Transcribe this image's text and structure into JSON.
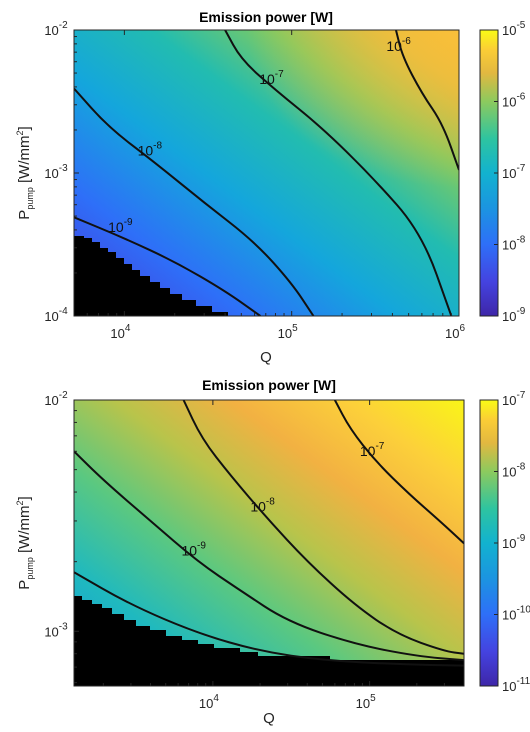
{
  "chart_data": [
    {
      "type": "heatmap",
      "title": "Emission power [W]",
      "xlabel": "Q",
      "ylabel_main": "P",
      "ylabel_sub": "pump",
      "ylabel_unit_pre": " [W/mm",
      "ylabel_unit_sup": "2",
      "ylabel_unit_post": "]",
      "xscale": "log",
      "yscale": "log",
      "xlim": [
        5000,
        1000000
      ],
      "ylim": [
        0.0001,
        0.01
      ],
      "colorbar": {
        "scale": "log",
        "range": [
          1e-09,
          1e-05
        ],
        "ticks": [
          {
            "base": "10",
            "exp": "-5"
          },
          {
            "base": "10",
            "exp": "-6"
          },
          {
            "base": "10",
            "exp": "-7"
          },
          {
            "base": "10",
            "exp": "-8"
          },
          {
            "base": "10",
            "exp": "-9"
          }
        ]
      },
      "xticks": [
        {
          "base": "10",
          "exp": "4"
        },
        {
          "base": "10",
          "exp": "5"
        },
        {
          "base": "10",
          "exp": "6"
        }
      ],
      "yticks": [
        {
          "base": "10",
          "exp": "-2"
        },
        {
          "base": "10",
          "exp": "-3"
        },
        {
          "base": "10",
          "exp": "-4"
        }
      ],
      "contours": [
        {
          "level": 1e-09,
          "label_base": "10",
          "label_exp": "-9",
          "points": [
            [
              5000,
              0.00049
            ],
            [
              10000,
              0.00035
            ],
            [
              20000,
              0.00024
            ],
            [
              40000,
              0.00015
            ],
            [
              65000,
              0.0001
            ]
          ]
        },
        {
          "level": 1e-08,
          "label_base": "10",
          "label_exp": "-8",
          "points": [
            [
              5000,
              0.0039
            ],
            [
              8000,
              0.0021
            ],
            [
              15000,
              0.0012
            ],
            [
              30000,
              0.00062
            ],
            [
              60000,
              0.00033
            ],
            [
              100000,
              0.00017
            ],
            [
              135000,
              0.0001
            ]
          ]
        },
        {
          "level": 1e-07,
          "label_base": "10",
          "label_exp": "-7",
          "points": [
            [
              40000,
              0.01
            ],
            [
              50000,
              0.0062
            ],
            [
              80000,
              0.0038
            ],
            [
              150000,
              0.0021
            ],
            [
              300000,
              0.00095
            ],
            [
              600000,
              0.00038
            ],
            [
              900000,
              0.0001
            ]
          ]
        },
        {
          "level": 1e-06,
          "label_base": "10",
          "label_exp": "-6",
          "points": [
            [
              420000,
              0.01
            ],
            [
              460000,
              0.0065
            ],
            [
              600000,
              0.0036
            ],
            [
              800000,
              0.0022
            ],
            [
              1000000,
              0.00105
            ]
          ]
        }
      ],
      "no_data_region": "black region at lower left (low Q, low P_pump)"
    },
    {
      "type": "heatmap",
      "title": "Emission power [W]",
      "xlabel": "Q",
      "ylabel_main": "P",
      "ylabel_sub": "pump",
      "ylabel_unit_pre": " [W/mm",
      "ylabel_unit_sup": "2",
      "ylabel_unit_post": "]",
      "xscale": "log",
      "yscale": "log",
      "xlim": [
        1300,
        400000
      ],
      "ylim": [
        0.00058,
        0.01
      ],
      "colorbar": {
        "scale": "log",
        "range": [
          1e-11,
          1e-07
        ],
        "ticks": [
          {
            "base": "10",
            "exp": "-7"
          },
          {
            "base": "10",
            "exp": "-8"
          },
          {
            "base": "10",
            "exp": "-9"
          },
          {
            "base": "10",
            "exp": "-10"
          },
          {
            "base": "10",
            "exp": "-11"
          }
        ]
      },
      "xticks": [
        {
          "base": "10",
          "exp": "4"
        },
        {
          "base": "10",
          "exp": "5"
        }
      ],
      "yticks": [
        {
          "base": "10",
          "exp": "-2"
        },
        {
          "base": "10",
          "exp": "-3"
        }
      ],
      "contours": [
        {
          "level": 1e-09,
          "label_base": "10",
          "label_exp": "-9",
          "points": [
            [
              1300,
              0.006
            ],
            [
              2000,
              0.0045
            ],
            [
              4000,
              0.003
            ],
            [
              8000,
              0.002
            ],
            [
              15000,
              0.0015
            ],
            [
              30000,
              0.0011
            ],
            [
              80000,
              0.00088
            ],
            [
              200000,
              0.00078
            ],
            [
              400000,
              0.00075
            ]
          ]
        },
        {
          "level": 1e-08,
          "label_base": "10",
          "label_exp": "-8",
          "points": [
            [
              6500,
              0.01
            ],
            [
              8500,
              0.0068
            ],
            [
              13000,
              0.0047
            ],
            [
              22000,
              0.0031
            ],
            [
              40000,
              0.002
            ],
            [
              80000,
              0.0013
            ],
            [
              150000,
              0.00097
            ],
            [
              300000,
              0.00082
            ],
            [
              400000,
              0.0008
            ]
          ]
        },
        {
          "level": 1e-07,
          "label_base": "10",
          "label_exp": "-7",
          "points": [
            [
              60000,
              0.01
            ],
            [
              75000,
              0.0075
            ],
            [
              110000,
              0.0054
            ],
            [
              180000,
              0.0039
            ],
            [
              280000,
              0.003
            ],
            [
              400000,
              0.0024
            ]
          ]
        },
        {
          "level": 1e-10,
          "label_base": "",
          "label_exp": "",
          "points": [
            [
              1300,
              0.0018
            ],
            [
              3000,
              0.0013
            ],
            [
              8000,
              0.00098
            ],
            [
              20000,
              0.00082
            ],
            [
              50000,
              0.00075
            ],
            [
              150000,
              0.00072
            ],
            [
              400000,
              0.00071
            ]
          ]
        }
      ],
      "no_data_region": "black region along bottom edge (low P_pump)"
    }
  ]
}
